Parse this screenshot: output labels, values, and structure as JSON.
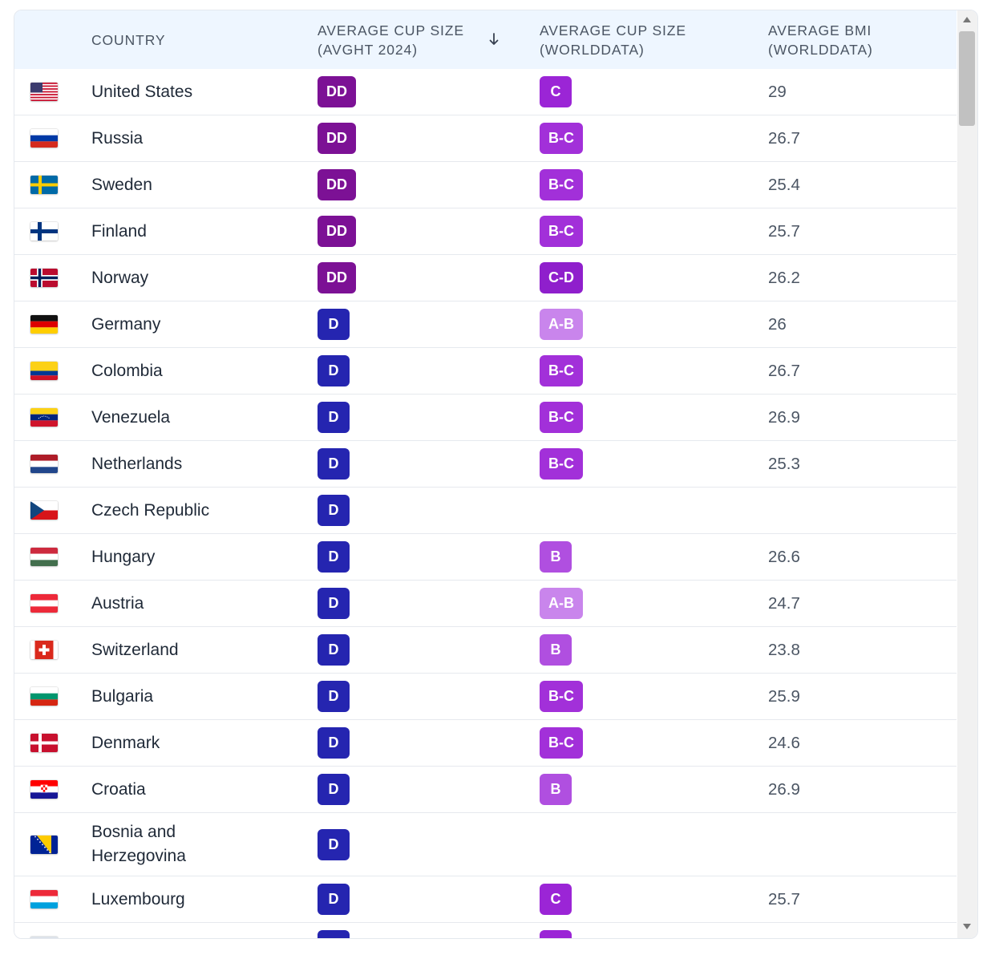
{
  "header": {
    "col_flag": "",
    "col_country": "COUNTRY",
    "col_avght_line1": "AVERAGE CUP SIZE",
    "col_avght_line2": "(AVGHT 2024)",
    "col_world_line1": "AVERAGE CUP SIZE",
    "col_world_line2": "(WORLDDATA)",
    "col_bmi_line1": "AVERAGE BMI",
    "col_bmi_line2": "(WORLDDATA)",
    "sort_icon": "arrow-down-icon"
  },
  "colors": {
    "DD": "#7c1195",
    "D": "#2525b0",
    "C": "#9b25d6",
    "B-C": "#a230d9",
    "C-D": "#8f1fcc",
    "B": "#b04fe0",
    "A-B": "#c985ec"
  },
  "rows": [
    {
      "flag": "us-flag-icon",
      "country": "United States",
      "avght": "DD",
      "world": "C",
      "bmi": "29"
    },
    {
      "flag": "ru-flag-icon",
      "country": "Russia",
      "avght": "DD",
      "world": "B-C",
      "bmi": "26.7"
    },
    {
      "flag": "se-flag-icon",
      "country": "Sweden",
      "avght": "DD",
      "world": "B-C",
      "bmi": "25.4"
    },
    {
      "flag": "fi-flag-icon",
      "country": "Finland",
      "avght": "DD",
      "world": "B-C",
      "bmi": "25.7"
    },
    {
      "flag": "no-flag-icon",
      "country": "Norway",
      "avght": "DD",
      "world": "C-D",
      "bmi": "26.2"
    },
    {
      "flag": "de-flag-icon",
      "country": "Germany",
      "avght": "D",
      "world": "A-B",
      "bmi": "26"
    },
    {
      "flag": "co-flag-icon",
      "country": "Colombia",
      "avght": "D",
      "world": "B-C",
      "bmi": "26.7"
    },
    {
      "flag": "ve-flag-icon",
      "country": "Venezuela",
      "avght": "D",
      "world": "B-C",
      "bmi": "26.9"
    },
    {
      "flag": "nl-flag-icon",
      "country": "Netherlands",
      "avght": "D",
      "world": "B-C",
      "bmi": "25.3"
    },
    {
      "flag": "cz-flag-icon",
      "country": "Czech Republic",
      "avght": "D",
      "world": "",
      "bmi": ""
    },
    {
      "flag": "hu-flag-icon",
      "country": "Hungary",
      "avght": "D",
      "world": "B",
      "bmi": "26.6"
    },
    {
      "flag": "at-flag-icon",
      "country": "Austria",
      "avght": "D",
      "world": "A-B",
      "bmi": "24.7"
    },
    {
      "flag": "ch-flag-icon",
      "country": "Switzerland",
      "avght": "D",
      "world": "B",
      "bmi": "23.8"
    },
    {
      "flag": "bg-flag-icon",
      "country": "Bulgaria",
      "avght": "D",
      "world": "B-C",
      "bmi": "25.9"
    },
    {
      "flag": "dk-flag-icon",
      "country": "Denmark",
      "avght": "D",
      "world": "B-C",
      "bmi": "24.6"
    },
    {
      "flag": "hr-flag-icon",
      "country": "Croatia",
      "avght": "D",
      "world": "B",
      "bmi": "26.9"
    },
    {
      "flag": "ba-flag-icon",
      "country": "Bosnia and Herzegovina",
      "avght": "D",
      "world": "",
      "bmi": ""
    },
    {
      "flag": "lu-flag-icon",
      "country": "Luxembourg",
      "avght": "D",
      "world": "C",
      "bmi": "25.7"
    }
  ]
}
